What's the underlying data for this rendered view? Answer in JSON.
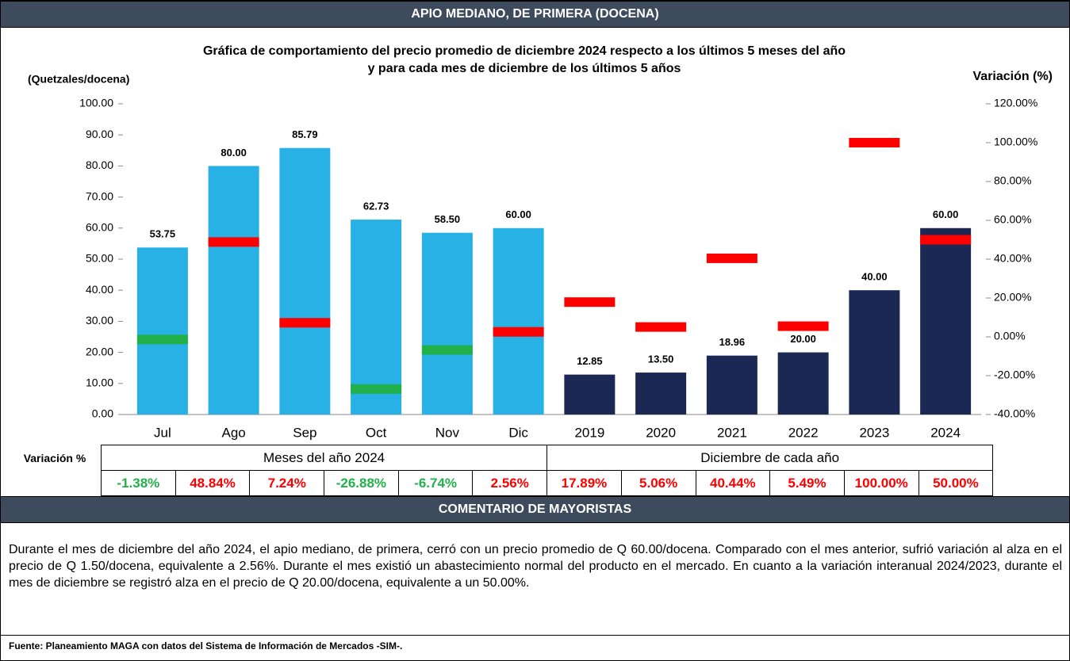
{
  "header": "APIO MEDIANO, DE PRIMERA (DOCENA)",
  "chart_data": {
    "type": "bar",
    "title": [
      "Gráfica de comportamiento del precio promedio de diciembre 2024 respecto a los últimos 5 meses del año",
      "y para cada mes de diciembre de los últimos 5 años"
    ],
    "y_label": "(Quetzales/docena)",
    "y2_label": "Variación (%)",
    "categories": [
      "Jul",
      "Ago",
      "Sep",
      "Oct",
      "Nov",
      "Dic",
      "2019",
      "2020",
      "2021",
      "2022",
      "2023",
      "2024"
    ],
    "series": [
      {
        "name": "Meses del año  2024",
        "color": "#27b1e4",
        "values": [
          53.75,
          80,
          85.79,
          62.73,
          58.5,
          60,
          null,
          null,
          null,
          null,
          null,
          null
        ],
        "value_labels": [
          "53.75",
          "80.00",
          "85.79",
          "62.73",
          "58.50",
          "60.00",
          null,
          null,
          null,
          null,
          null,
          null
        ]
      },
      {
        "name": "Diciembre de cada año",
        "color": "#1b2853",
        "values": [
          null,
          null,
          null,
          null,
          null,
          null,
          12.85,
          13.5,
          18.96,
          20,
          40,
          60
        ],
        "value_labels": [
          null,
          null,
          null,
          null,
          null,
          null,
          "12.85",
          "13.50",
          "18.96",
          "20.00",
          "40.00",
          "60.00"
        ]
      },
      {
        "name": "Variación %",
        "axis": "y2",
        "colors": [
          "#22b04b",
          "#ff0000",
          "#ff0000",
          "#22b04b",
          "#22b04b",
          "#ff0000",
          "#ff0000",
          "#ff0000",
          "#ff0000",
          "#ff0000",
          "#ff0000",
          "#ff0000"
        ],
        "values": [
          -1.38,
          48.84,
          7.24,
          -26.88,
          -6.74,
          2.56,
          17.89,
          5.06,
          40.44,
          5.49,
          100,
          50
        ],
        "value_labels": [
          "-1.38%",
          "48.84%",
          "7.24%",
          "-26.88%",
          "-6.74%",
          "2.56%",
          "17.89%",
          "5.06%",
          "40.44%",
          "5.49%",
          "100.00%",
          "50.00%"
        ]
      }
    ],
    "ylim": [
      0,
      100
    ],
    "yticks": [
      {
        "value": 0,
        "label": "0.00"
      },
      {
        "value": 10,
        "label": "10.00"
      },
      {
        "value": 20,
        "label": "20.00"
      },
      {
        "value": 30,
        "label": "30.00"
      },
      {
        "value": 40,
        "label": "40.00"
      },
      {
        "value": 50,
        "label": "50.00"
      },
      {
        "value": 60,
        "label": "60.00"
      },
      {
        "value": 70,
        "label": "70.00"
      },
      {
        "value": 80,
        "label": "80.00"
      },
      {
        "value": 90,
        "label": "90.00"
      },
      {
        "value": 100,
        "label": "100.00"
      }
    ],
    "y2lim": [
      -40,
      120
    ],
    "y2ticks": [
      {
        "value": -40,
        "label": "-40.00%"
      },
      {
        "value": -20,
        "label": "-20.00%"
      },
      {
        "value": 0,
        "label": "0.00%"
      },
      {
        "value": 20,
        "label": "20.00%"
      },
      {
        "value": 40,
        "label": "40.00%"
      },
      {
        "value": 60,
        "label": "60.00%"
      },
      {
        "value": 80,
        "label": "80.00%"
      },
      {
        "value": 100,
        "label": "100.00%"
      },
      {
        "value": 120,
        "label": "120.00%"
      }
    ],
    "grid": false
  },
  "comment_header": "COMENTARIO DE MAYORISTAS",
  "comment": "Durante el mes de diciembre del año 2024, el apio mediano, de primera, cerró con un precio promedio de Q 60.00/docena. Comparado con el mes anterior, sufrió variación al alza en el precio de Q 1.50/docena, equivalente a 2.56%. Durante el mes existió un abastecimiento normal del producto en el mercado. En cuanto a la variación interanual 2024/2023, durante el mes de diciembre se registró alza en el precio de Q 20.00/docena, equivalente a un 50.00%.",
  "source": "Fuente: Planeamiento MAGA con datos del  Sistema de Información de Mercados -SIM-."
}
